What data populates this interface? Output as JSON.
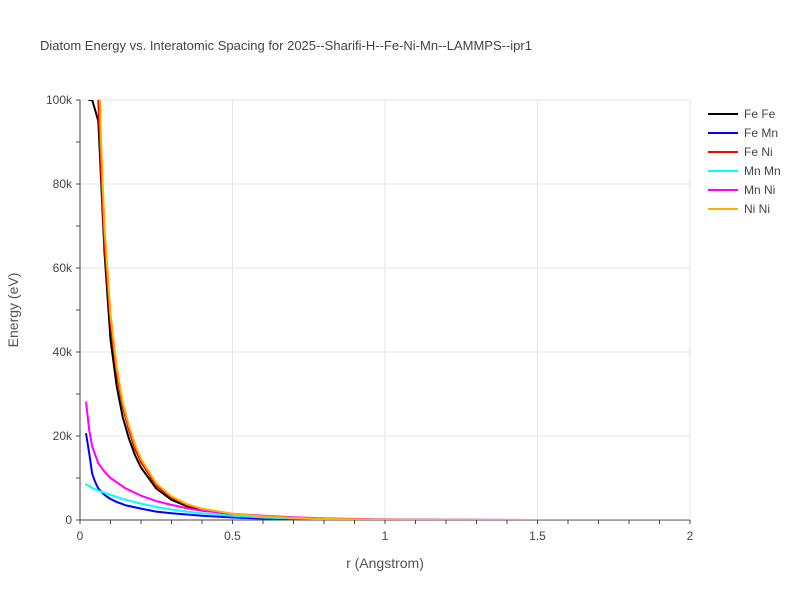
{
  "chart_data": {
    "type": "line",
    "title": "Diatom Energy vs. Interatomic Spacing for 2025--Sharifi-H--Fe-Ni-Mn--LAMMPS--ipr1",
    "xlabel": "r (Angstrom)",
    "ylabel": "Energy (eV)",
    "xlim": [
      0,
      2
    ],
    "ylim": [
      0,
      100000
    ],
    "x_ticks": [
      {
        "value": 0,
        "label": "0"
      },
      {
        "value": 0.5,
        "label": "0.5"
      },
      {
        "value": 1,
        "label": "1"
      },
      {
        "value": 1.5,
        "label": "1.5"
      },
      {
        "value": 2,
        "label": "2"
      }
    ],
    "y_ticks": [
      {
        "value": 0,
        "label": "0"
      },
      {
        "value": 20000,
        "label": "20k"
      },
      {
        "value": 40000,
        "label": "40k"
      },
      {
        "value": 60000,
        "label": "60k"
      },
      {
        "value": 80000,
        "label": "80k"
      },
      {
        "value": 100000,
        "label": "100k"
      }
    ],
    "grid": true,
    "legend": "top-right",
    "series": [
      {
        "name": "Fe Fe",
        "color": "#000000",
        "x": [
          0.03,
          0.04,
          0.06,
          0.08,
          0.1,
          0.12,
          0.14,
          0.16,
          0.18,
          0.2,
          0.25,
          0.3,
          0.35,
          0.4,
          0.5,
          0.6,
          0.7,
          0.8,
          1.0,
          1.2,
          1.5,
          2.0
        ],
        "y": [
          100000,
          100000,
          95000,
          64000,
          43000,
          32000,
          24500,
          19500,
          15500,
          12500,
          7500,
          4800,
          3300,
          2400,
          1300,
          700,
          350,
          150,
          40,
          0,
          0,
          0
        ]
      },
      {
        "name": "Fe Mn",
        "color": "#0000ff",
        "x": [
          0.02,
          0.03,
          0.04,
          0.05,
          0.06,
          0.08,
          0.1,
          0.12,
          0.15,
          0.2,
          0.25,
          0.3,
          0.35,
          0.4,
          0.5,
          0.6,
          0.7,
          0.8,
          1.0,
          1.2,
          1.5,
          2.0
        ],
        "y": [
          20500,
          16000,
          11000,
          9000,
          7500,
          6000,
          5000,
          4300,
          3500,
          2700,
          2000,
          1600,
          1300,
          1000,
          600,
          350,
          200,
          100,
          30,
          0,
          0,
          0
        ]
      },
      {
        "name": "Fe Ni",
        "color": "#ff0000",
        "x": [
          0.06,
          0.07,
          0.08,
          0.1,
          0.12,
          0.14,
          0.16,
          0.18,
          0.2,
          0.25,
          0.3,
          0.35,
          0.4,
          0.5,
          0.6,
          0.7,
          0.8,
          1.0,
          1.2,
          1.5,
          2.0
        ],
        "y": [
          100000,
          82000,
          66000,
          47000,
          35000,
          27000,
          21500,
          17000,
          13800,
          8200,
          5300,
          3600,
          2600,
          1400,
          800,
          450,
          250,
          80,
          20,
          0,
          0
        ]
      },
      {
        "name": "Mn Mn",
        "color": "#00ffff",
        "x": [
          0.02,
          0.04,
          0.06,
          0.08,
          0.1,
          0.12,
          0.15,
          0.2,
          0.25,
          0.3,
          0.35,
          0.4,
          0.5,
          0.6,
          0.7,
          0.8,
          1.0,
          1.2,
          1.5,
          2.0
        ],
        "y": [
          8500,
          7600,
          7000,
          6500,
          6000,
          5500,
          4800,
          3900,
          3100,
          2500,
          2000,
          1600,
          1000,
          600,
          350,
          200,
          80,
          30,
          0,
          0
        ]
      },
      {
        "name": "Mn Ni",
        "color": "#ff00ff",
        "x": [
          0.02,
          0.03,
          0.04,
          0.05,
          0.06,
          0.08,
          0.1,
          0.12,
          0.15,
          0.2,
          0.25,
          0.3,
          0.35,
          0.4,
          0.5,
          0.6,
          0.7,
          0.8,
          1.0,
          1.2,
          1.5,
          2.0
        ],
        "y": [
          28000,
          21500,
          17500,
          15500,
          13500,
          11500,
          10000,
          9000,
          7500,
          5800,
          4500,
          3600,
          2800,
          2200,
          1500,
          1000,
          650,
          400,
          150,
          50,
          10,
          0
        ]
      },
      {
        "name": "Ni Ni",
        "color": "#ffb000",
        "x": [
          0.065,
          0.07,
          0.08,
          0.1,
          0.12,
          0.14,
          0.16,
          0.18,
          0.2,
          0.25,
          0.3,
          0.35,
          0.4,
          0.5,
          0.6,
          0.7,
          0.8,
          1.0,
          1.2,
          1.5,
          2.0
        ],
        "y": [
          100000,
          88000,
          70000,
          49000,
          36500,
          28000,
          22500,
          18000,
          14500,
          8700,
          5600,
          3800,
          2700,
          1500,
          850,
          500,
          280,
          90,
          25,
          0,
          0
        ]
      }
    ]
  }
}
